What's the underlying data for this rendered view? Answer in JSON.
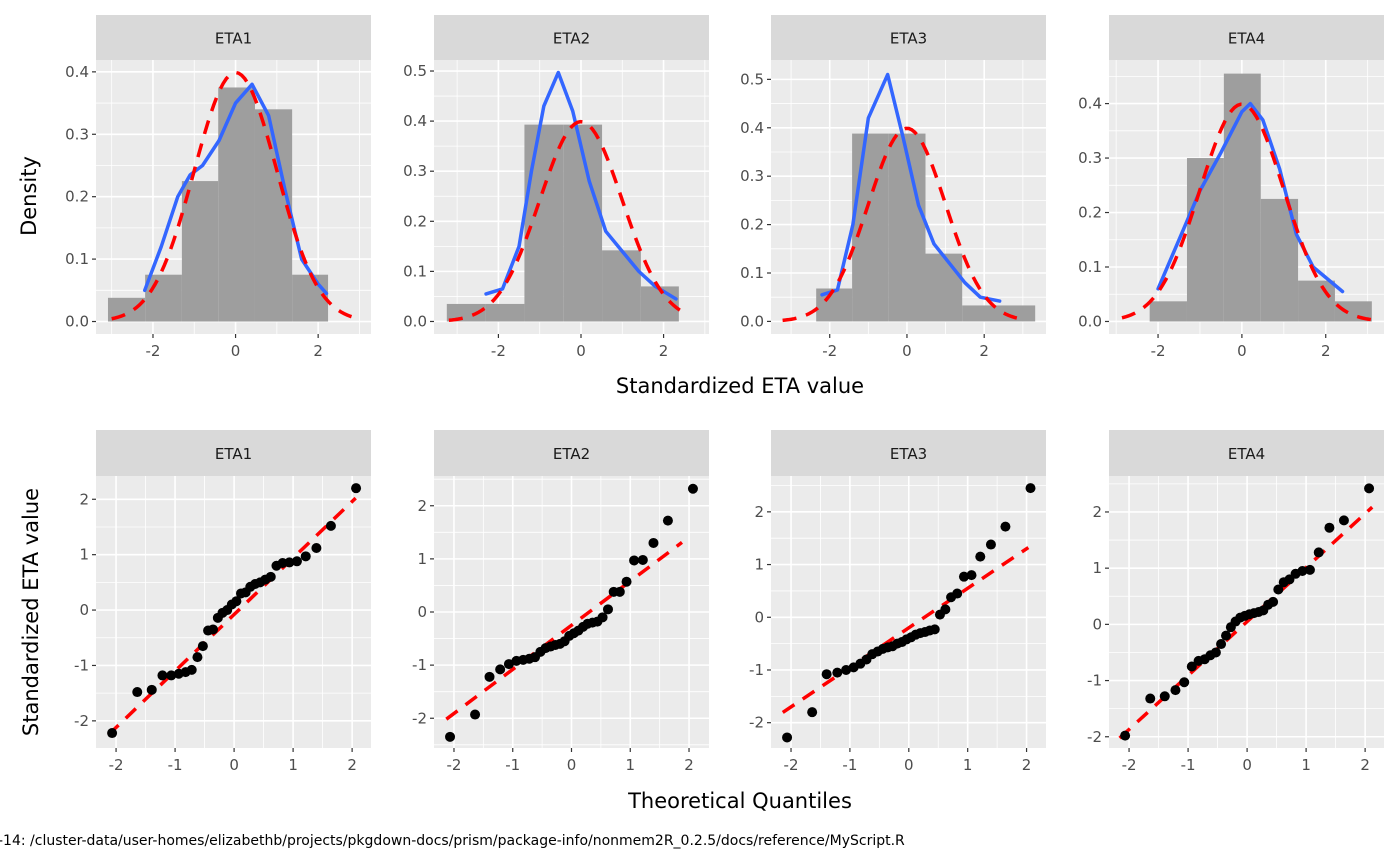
{
  "footer_text": "-14: /cluster-data/user-homes/elizabethb/projects/pkgdown-docs/prism/package-info/nonmem2R_0.2.5/docs/reference/MyScript.R",
  "colors": {
    "panel_bg": "#ebebeb",
    "strip_bg": "#d9d9d9",
    "grid": "#ffffff",
    "histogram": "#9e9e9e",
    "density": "#3366ff",
    "normal": "#ff0000",
    "points": "#000000"
  },
  "chart_data": [
    {
      "type": "histogram",
      "row": "top",
      "xlabel": "Standardized ETA value",
      "ylabel": "Density",
      "grid": true,
      "panels": [
        {
          "strip": "ETA1",
          "xlim": [
            -3.38,
            3.28
          ],
          "ylim": [
            -0.02,
            0.419
          ],
          "xticks": [
            "-2",
            "0",
            "2"
          ],
          "yticks": [
            "0.0",
            "0.1",
            "0.2",
            "0.3",
            "0.4"
          ],
          "bins": [
            [
              -3.09,
              -2.19,
              0.038
            ],
            [
              -2.19,
              -1.3,
              0.075
            ],
            [
              -1.3,
              -0.42,
              0.225
            ],
            [
              -0.42,
              0.47,
              0.375
            ],
            [
              0.47,
              1.37,
              0.34
            ],
            [
              1.37,
              2.24,
              0.075
            ]
          ],
          "density": [
            [
              -2.2,
              0.05
            ],
            [
              -1.8,
              0.12
            ],
            [
              -1.4,
              0.2
            ],
            [
              -1.1,
              0.235
            ],
            [
              -0.8,
              0.25
            ],
            [
              -0.4,
              0.29
            ],
            [
              0,
              0.35
            ],
            [
              0.4,
              0.38
            ],
            [
              0.8,
              0.33
            ],
            [
              1.2,
              0.21
            ],
            [
              1.6,
              0.1
            ],
            [
              2.0,
              0.06
            ],
            [
              2.2,
              0.045
            ]
          ],
          "normal_range": [
            -3.0,
            3.0
          ]
        },
        {
          "strip": "ETA2",
          "xlim": [
            -3.56,
            3.1
          ],
          "ylim": [
            -0.025,
            0.522
          ],
          "xticks": [
            "-2",
            "0",
            "2"
          ],
          "yticks": [
            "0.0",
            "0.1",
            "0.2",
            "0.3",
            "0.4",
            "0.5"
          ],
          "bins": [
            [
              -3.25,
              -2.31,
              0.035
            ],
            [
              -2.31,
              -1.37,
              0.035
            ],
            [
              -1.37,
              -0.43,
              0.393
            ],
            [
              -0.43,
              0.51,
              0.393
            ],
            [
              0.51,
              1.45,
              0.142
            ],
            [
              1.45,
              2.37,
              0.07
            ]
          ],
          "density": [
            [
              -2.3,
              0.055
            ],
            [
              -1.9,
              0.065
            ],
            [
              -1.5,
              0.15
            ],
            [
              -1.2,
              0.3
            ],
            [
              -0.9,
              0.43
            ],
            [
              -0.55,
              0.497
            ],
            [
              -0.2,
              0.42
            ],
            [
              0.2,
              0.28
            ],
            [
              0.6,
              0.18
            ],
            [
              1.0,
              0.14
            ],
            [
              1.4,
              0.1
            ],
            [
              1.8,
              0.07
            ],
            [
              2.3,
              0.045
            ]
          ],
          "normal_range": [
            -3.2,
            2.6
          ]
        },
        {
          "strip": "ETA3",
          "xlim": [
            -3.52,
            3.6
          ],
          "ylim": [
            -0.026,
            0.54
          ],
          "xticks": [
            "-2",
            "0",
            "2"
          ],
          "yticks": [
            "0.0",
            "0.1",
            "0.2",
            "0.3",
            "0.4",
            "0.5"
          ],
          "bins": [
            [
              -2.35,
              -1.42,
              0.068
            ],
            [
              -1.42,
              -0.47,
              0.388
            ],
            [
              -0.47,
              0.48,
              0.388
            ],
            [
              0.48,
              1.43,
              0.14
            ],
            [
              1.43,
              2.37,
              0.033
            ],
            [
              2.37,
              3.32,
              0.033
            ]
          ],
          "density": [
            [
              -2.2,
              0.055
            ],
            [
              -1.8,
              0.065
            ],
            [
              -1.4,
              0.2
            ],
            [
              -1.0,
              0.42
            ],
            [
              -0.5,
              0.51
            ],
            [
              -0.1,
              0.38
            ],
            [
              0.3,
              0.24
            ],
            [
              0.7,
              0.16
            ],
            [
              1.1,
              0.12
            ],
            [
              1.5,
              0.08
            ],
            [
              1.9,
              0.05
            ],
            [
              2.4,
              0.042
            ]
          ],
          "normal_range": [
            -3.22,
            2.86
          ]
        },
        {
          "strip": "ETA4",
          "xlim": [
            -3.17,
            3.39
          ],
          "ylim": [
            -0.023,
            0.48
          ],
          "xticks": [
            "-2",
            "0",
            "2"
          ],
          "yticks": [
            "0.0",
            "0.1",
            "0.2",
            "0.3",
            "0.4"
          ],
          "bins": [
            [
              -2.2,
              -1.31,
              0.037
            ],
            [
              -1.31,
              -0.43,
              0.3
            ],
            [
              -0.43,
              0.45,
              0.455
            ],
            [
              0.45,
              1.34,
              0.225
            ],
            [
              1.34,
              2.22,
              0.075
            ],
            [
              2.22,
              3.1,
              0.037
            ]
          ],
          "density": [
            [
              -2.0,
              0.06
            ],
            [
              -1.5,
              0.15
            ],
            [
              -1.0,
              0.24
            ],
            [
              -0.5,
              0.31
            ],
            [
              0,
              0.385
            ],
            [
              0.2,
              0.4
            ],
            [
              0.5,
              0.37
            ],
            [
              0.9,
              0.28
            ],
            [
              1.3,
              0.16
            ],
            [
              1.7,
              0.1
            ],
            [
              2.4,
              0.055
            ]
          ],
          "normal_range": [
            -2.86,
            3.1
          ]
        }
      ]
    },
    {
      "type": "scatter",
      "row": "bottom",
      "xlabel": "Theoretical Quantiles",
      "ylabel": "Standardized ETA value",
      "grid": true,
      "theoretical_quantiles": [
        -2.067,
        -1.641,
        -1.395,
        -1.214,
        -1.065,
        -0.937,
        -0.822,
        -0.718,
        -0.621,
        -0.529,
        -0.441,
        -0.357,
        -0.275,
        -0.196,
        -0.117,
        -0.039,
        0.039,
        0.117,
        0.196,
        0.275,
        0.357,
        0.441,
        0.529,
        0.621,
        0.718,
        0.822,
        0.937,
        1.065,
        1.214,
        1.395,
        1.641,
        2.067
      ],
      "panels": [
        {
          "strip": "ETA1",
          "xlim": [
            -2.34,
            2.32
          ],
          "ylim": [
            -2.49,
            2.42
          ],
          "xticks": [
            "-2",
            "-1",
            "0",
            "1",
            "2"
          ],
          "yticks": [
            "-2",
            "-1",
            "0",
            "1",
            "2"
          ],
          "values": [
            -2.22,
            -1.48,
            -1.44,
            -1.18,
            -1.18,
            -1.15,
            -1.12,
            -1.08,
            -0.85,
            -0.65,
            -0.37,
            -0.35,
            -0.14,
            -0.05,
            0.0,
            0.1,
            0.16,
            0.3,
            0.32,
            0.42,
            0.47,
            0.5,
            0.55,
            0.6,
            0.8,
            0.85,
            0.86,
            0.88,
            0.97,
            1.12,
            1.52,
            2.2
          ],
          "qqline": {
            "slope": 1.02,
            "intercept": -0.08,
            "x_range": [
              -2.13,
              2.06
            ]
          }
        },
        {
          "strip": "ETA2",
          "xlim": [
            -2.34,
            2.34
          ],
          "ylim": [
            -2.56,
            2.56
          ],
          "xticks": [
            "-2",
            "-1",
            "0",
            "1",
            "2"
          ],
          "yticks": [
            "-2",
            "-1",
            "0",
            "1",
            "2"
          ],
          "values": [
            -2.35,
            -1.93,
            -1.22,
            -1.08,
            -0.98,
            -0.92,
            -0.9,
            -0.88,
            -0.85,
            -0.75,
            -0.68,
            -0.65,
            -0.62,
            -0.6,
            -0.55,
            -0.45,
            -0.4,
            -0.35,
            -0.28,
            -0.22,
            -0.2,
            -0.18,
            -0.1,
            0.05,
            0.38,
            0.38,
            0.57,
            0.97,
            0.98,
            1.3,
            1.72,
            2.32
          ],
          "qqline": {
            "slope": 0.83,
            "intercept": -0.25,
            "x_range": [
              -2.13,
              1.88
            ]
          }
        },
        {
          "strip": "ETA3",
          "xlim": [
            -2.34,
            2.33
          ],
          "ylim": [
            -2.48,
            2.68
          ],
          "xticks": [
            "-2",
            "-1",
            "0",
            "1",
            "2"
          ],
          "yticks": [
            "-2",
            "-1",
            "0",
            "1",
            "2"
          ],
          "values": [
            -2.28,
            -1.8,
            -1.08,
            -1.05,
            -1.0,
            -0.95,
            -0.88,
            -0.8,
            -0.7,
            -0.65,
            -0.6,
            -0.57,
            -0.55,
            -0.5,
            -0.47,
            -0.42,
            -0.38,
            -0.33,
            -0.3,
            -0.28,
            -0.25,
            -0.23,
            0.05,
            0.15,
            0.38,
            0.45,
            0.77,
            0.8,
            1.15,
            1.38,
            1.72,
            2.45
          ],
          "qqline": {
            "slope": 0.75,
            "intercept": -0.2,
            "x_range": [
              -2.14,
              2.03
            ]
          }
        },
        {
          "strip": "ETA4",
          "xlim": [
            -2.34,
            2.32
          ],
          "ylim": [
            -2.2,
            2.64
          ],
          "xticks": [
            "-2",
            "-1",
            "0",
            "1",
            "2"
          ],
          "yticks": [
            "-2",
            "-1",
            "0",
            "1",
            "2"
          ],
          "values": [
            -1.98,
            -1.32,
            -1.28,
            -1.17,
            -1.03,
            -0.75,
            -0.65,
            -0.62,
            -0.55,
            -0.5,
            -0.35,
            -0.2,
            -0.05,
            0.05,
            0.12,
            0.15,
            0.18,
            0.2,
            0.22,
            0.25,
            0.35,
            0.4,
            0.62,
            0.75,
            0.8,
            0.9,
            0.95,
            0.97,
            1.28,
            1.72,
            1.85,
            2.42
          ],
          "qqline": {
            "slope": 0.96,
            "intercept": 0.05,
            "x_range": [
              -2.16,
              2.12
            ]
          }
        }
      ]
    }
  ]
}
